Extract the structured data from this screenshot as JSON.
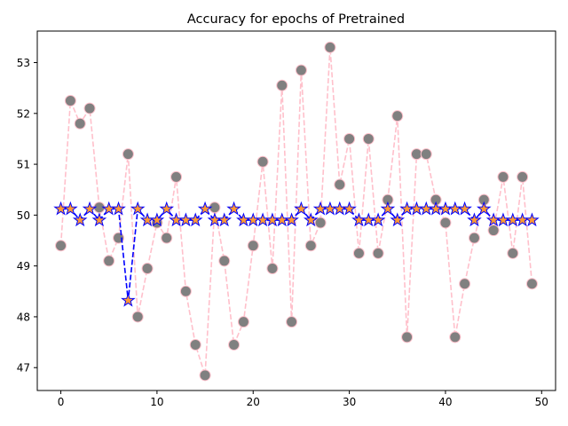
{
  "chart_data": {
    "type": "line",
    "title": "Accuracy for epochs of Pretrained",
    "xlabel": "",
    "ylabel": "",
    "xlim": [
      -2.45,
      51.45
    ],
    "ylim": [
      46.55,
      53.62
    ],
    "xticks": [
      0,
      10,
      20,
      30,
      40,
      50
    ],
    "yticks": [
      47,
      48,
      49,
      50,
      51,
      52,
      53
    ],
    "grid": false,
    "series": [
      {
        "style": "pink-dashed-circles",
        "line_color": "#ffc0cb",
        "marker_color": "#808080",
        "marker_edge": "#ffc0cb",
        "x": [
          0,
          1,
          2,
          3,
          4,
          5,
          6,
          7,
          8,
          9,
          10,
          11,
          12,
          13,
          14,
          15,
          16,
          17,
          18,
          19,
          20,
          21,
          22,
          23,
          24,
          25,
          26,
          27,
          28,
          29,
          30,
          31,
          32,
          33,
          34,
          35,
          36,
          37,
          38,
          39,
          40,
          41,
          42,
          43,
          44,
          45,
          46,
          47,
          48,
          49
        ],
        "y": [
          49.4,
          52.25,
          51.8,
          52.1,
          50.15,
          49.1,
          49.55,
          51.2,
          48.0,
          48.95,
          49.85,
          49.55,
          50.75,
          48.5,
          47.45,
          46.85,
          50.15,
          49.1,
          47.45,
          47.9,
          49.4,
          51.05,
          48.95,
          52.55,
          47.9,
          52.85,
          49.4,
          49.85,
          53.3,
          50.6,
          51.5,
          49.25,
          51.5,
          49.25,
          50.3,
          51.95,
          47.6,
          51.2,
          51.2,
          50.3,
          49.85,
          47.6,
          48.65,
          49.55,
          50.3,
          49.7,
          50.75,
          49.25,
          50.75,
          48.65
        ]
      },
      {
        "style": "blue-dashed-stars",
        "line_color": "#0000ff",
        "marker_color": "#ff9933",
        "marker_edge": "#0000ff",
        "x": [
          0,
          1,
          2,
          3,
          4,
          5,
          6,
          7,
          8,
          9,
          10,
          11,
          12,
          13,
          14,
          15,
          16,
          17,
          18,
          19,
          20,
          21,
          22,
          23,
          24,
          25,
          26,
          27,
          28,
          29,
          30,
          31,
          32,
          33,
          34,
          35,
          36,
          37,
          38,
          39,
          40,
          41,
          42,
          43,
          44,
          45,
          46,
          47,
          48,
          49
        ],
        "y": [
          50.12,
          50.12,
          49.9,
          50.12,
          49.9,
          50.12,
          50.12,
          48.32,
          50.12,
          49.9,
          49.9,
          50.12,
          49.9,
          49.9,
          49.9,
          50.12,
          49.9,
          49.9,
          50.12,
          49.9,
          49.9,
          49.9,
          49.9,
          49.9,
          49.9,
          50.12,
          49.9,
          50.12,
          50.12,
          50.12,
          50.12,
          49.9,
          49.9,
          49.9,
          50.12,
          49.9,
          50.12,
          50.12,
          50.12,
          50.12,
          50.12,
          50.12,
          50.12,
          49.9,
          50.12,
          49.9,
          49.9,
          49.9,
          49.9,
          49.9
        ]
      }
    ]
  }
}
